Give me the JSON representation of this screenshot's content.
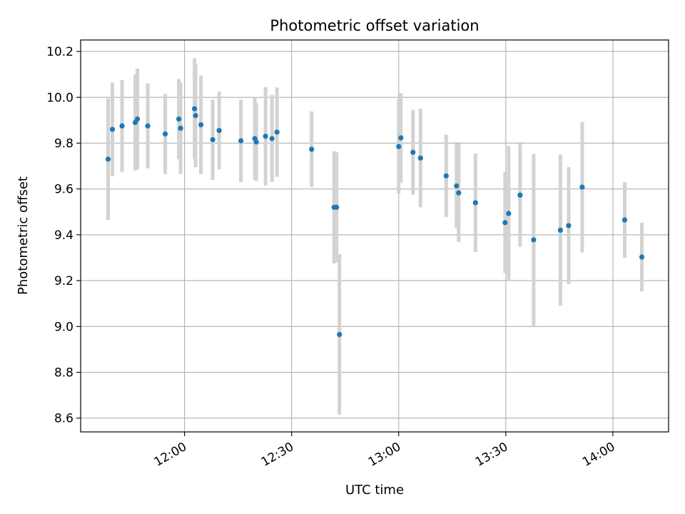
{
  "chart_data": {
    "type": "scatter",
    "title": "Photometric offset variation",
    "xlabel": "UTC time",
    "ylabel": "Photometric offset",
    "x_ticks": [
      "12:00",
      "12:30",
      "13:00",
      "13:30",
      "14:00"
    ],
    "x_tick_minutes": [
      0,
      30,
      60,
      90,
      120
    ],
    "xlim_minutes": [
      -29.1,
      135.6
    ],
    "x_reference": "12:00",
    "y_ticks": [
      8.6,
      8.8,
      9.0,
      9.2,
      9.4,
      9.6,
      9.8,
      10.0,
      10.2
    ],
    "ylim": [
      8.54,
      10.25
    ],
    "grid": true,
    "colors": {
      "point": "#1f77b4",
      "errorbar": "#d3d3d3"
    },
    "points": [
      {
        "t": -21.4,
        "y": 9.73,
        "err": 0.265
      },
      {
        "t": -20.2,
        "y": 9.86,
        "err": 0.205
      },
      {
        "t": -17.5,
        "y": 9.875,
        "err": 0.2
      },
      {
        "t": -13.8,
        "y": 9.89,
        "err": 0.21
      },
      {
        "t": -13.2,
        "y": 9.905,
        "err": 0.22
      },
      {
        "t": -10.3,
        "y": 9.875,
        "err": 0.185
      },
      {
        "t": -5.4,
        "y": 9.84,
        "err": 0.175
      },
      {
        "t": -1.6,
        "y": 9.905,
        "err": 0.175
      },
      {
        "t": -1.1,
        "y": 9.865,
        "err": 0.2
      },
      {
        "t": 2.8,
        "y": 9.95,
        "err": 0.22
      },
      {
        "t": 3.1,
        "y": 9.92,
        "err": 0.225
      },
      {
        "t": 4.6,
        "y": 9.88,
        "err": 0.215
      },
      {
        "t": 7.9,
        "y": 9.815,
        "err": 0.175
      },
      {
        "t": 9.7,
        "y": 9.855,
        "err": 0.17
      },
      {
        "t": 15.8,
        "y": 9.81,
        "err": 0.18
      },
      {
        "t": 19.7,
        "y": 9.82,
        "err": 0.18
      },
      {
        "t": 20.1,
        "y": 9.805,
        "err": 0.17
      },
      {
        "t": 22.7,
        "y": 9.83,
        "err": 0.215
      },
      {
        "t": 24.5,
        "y": 9.82,
        "err": 0.19
      },
      {
        "t": 25.9,
        "y": 9.848,
        "err": 0.195
      },
      {
        "t": 35.6,
        "y": 9.773,
        "err": 0.165
      },
      {
        "t": 41.9,
        "y": 9.52,
        "err": 0.245
      },
      {
        "t": 42.6,
        "y": 9.52,
        "err": 0.24
      },
      {
        "t": 43.4,
        "y": 8.965,
        "err": 0.35
      },
      {
        "t": 60.0,
        "y": 9.785,
        "err": 0.205
      },
      {
        "t": 60.6,
        "y": 9.823,
        "err": 0.195
      },
      {
        "t": 64.0,
        "y": 9.76,
        "err": 0.185
      },
      {
        "t": 66.1,
        "y": 9.735,
        "err": 0.215
      },
      {
        "t": 73.3,
        "y": 9.657,
        "err": 0.18
      },
      {
        "t": 76.2,
        "y": 9.613,
        "err": 0.185
      },
      {
        "t": 76.8,
        "y": 9.583,
        "err": 0.215
      },
      {
        "t": 81.5,
        "y": 9.54,
        "err": 0.215
      },
      {
        "t": 89.8,
        "y": 9.453,
        "err": 0.22
      },
      {
        "t": 90.8,
        "y": 9.493,
        "err": 0.295
      },
      {
        "t": 94.0,
        "y": 9.573,
        "err": 0.225
      },
      {
        "t": 97.8,
        "y": 9.378,
        "err": 0.375
      },
      {
        "t": 105.3,
        "y": 9.42,
        "err": 0.33
      },
      {
        "t": 107.6,
        "y": 9.44,
        "err": 0.255
      },
      {
        "t": 111.4,
        "y": 9.608,
        "err": 0.285
      },
      {
        "t": 123.3,
        "y": 9.465,
        "err": 0.165
      },
      {
        "t": 128.1,
        "y": 9.303,
        "err": 0.15
      }
    ]
  }
}
